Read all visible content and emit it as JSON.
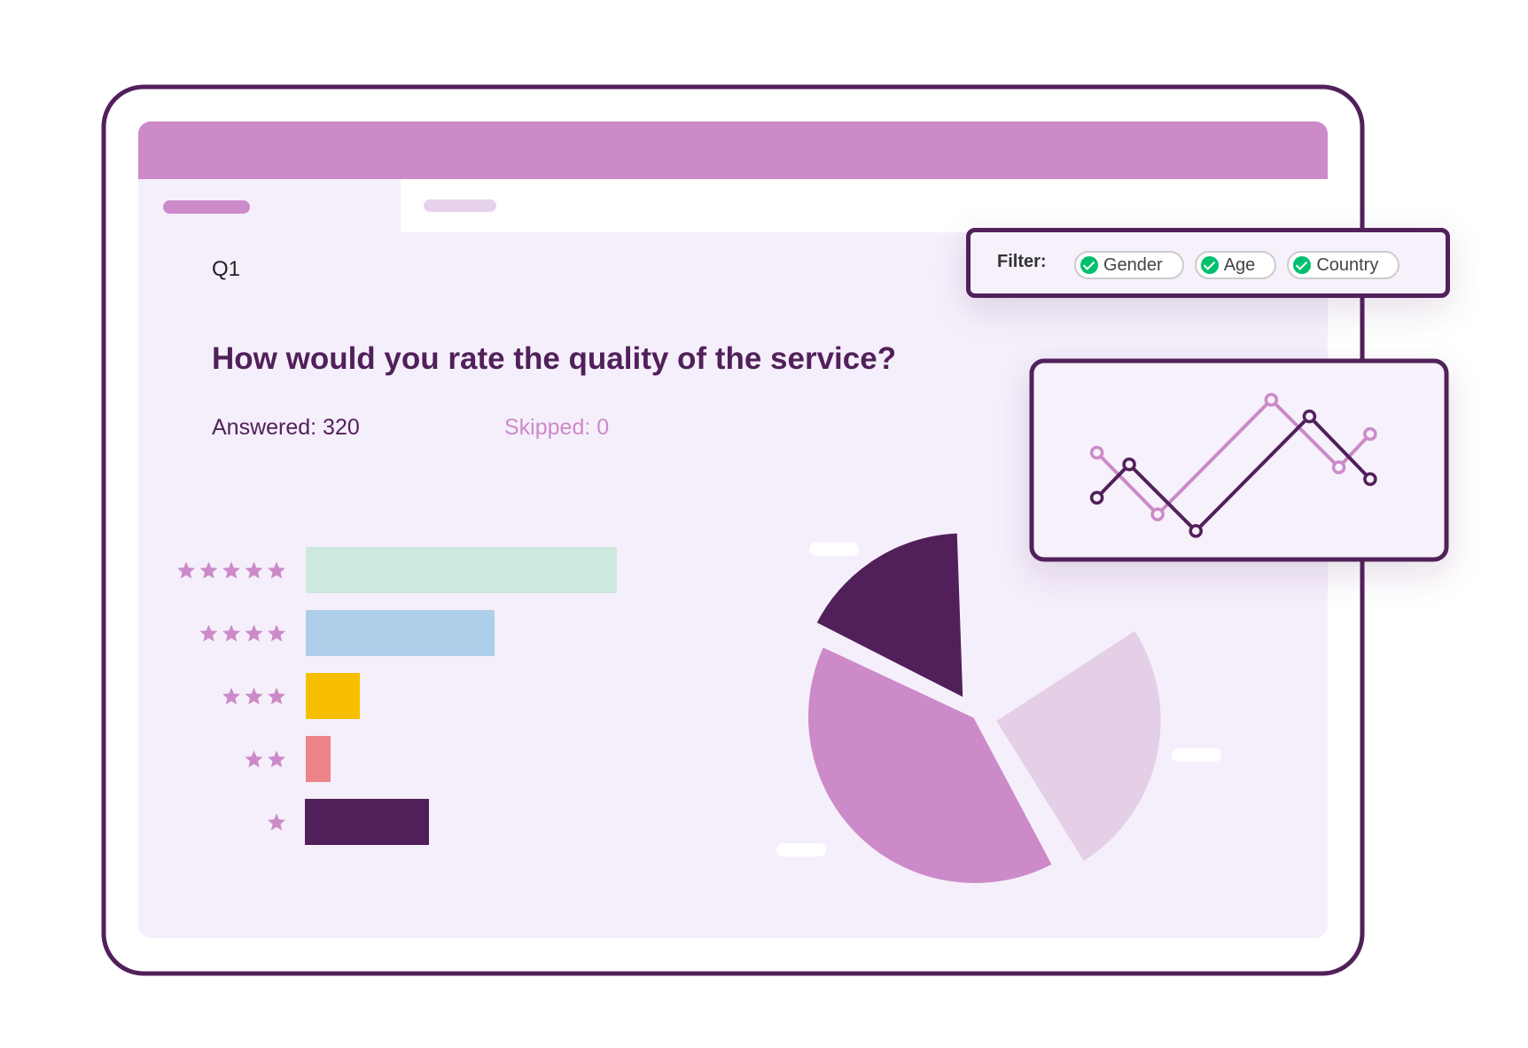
{
  "question": {
    "number": "Q1",
    "text": "How would you rate the quality of the service?",
    "answered": "Answered: 320",
    "skipped": "Skipped: 0"
  },
  "filter": {
    "label": "Filter:",
    "options": [
      "Gender",
      "Age",
      "Country"
    ]
  }
}
